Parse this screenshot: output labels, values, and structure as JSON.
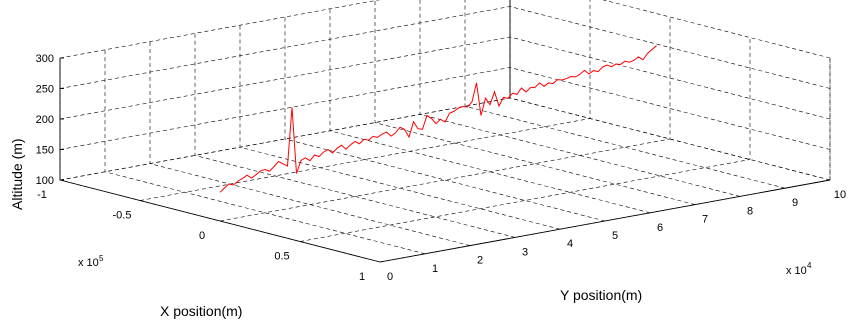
{
  "chart_data": {
    "type": "line",
    "subtype": "3d-line",
    "xlabel": "X position(m)",
    "ylabel": "Y position(m)",
    "zlabel": "Altitude (m)",
    "x_multiplier": "x 10^5",
    "y_multiplier": "x 10^4",
    "x_ticks": [
      "-1",
      "-0.5",
      "0",
      "0.5",
      "1"
    ],
    "y_ticks": [
      "0",
      "1",
      "2",
      "3",
      "4",
      "5",
      "6",
      "7",
      "8",
      "9",
      "10"
    ],
    "z_ticks": [
      "100",
      "150",
      "200",
      "250",
      "300"
    ],
    "xlim": [
      -100000,
      100000
    ],
    "ylim": [
      0,
      100000
    ],
    "zlim": [
      100,
      300
    ],
    "grid": true,
    "line_color": "#ff0000",
    "series": [
      {
        "x": [
          0,
          0,
          0,
          0,
          0,
          0,
          0,
          0,
          0,
          0,
          0,
          0,
          0,
          0,
          0,
          0,
          0,
          0,
          0,
          0,
          0,
          0,
          0,
          0,
          0,
          0,
          0,
          0,
          0,
          0,
          0,
          0,
          0,
          0,
          0,
          0,
          0,
          0,
          0,
          0,
          0,
          0,
          0,
          0,
          0,
          0,
          0,
          0,
          0,
          0,
          0,
          0,
          0,
          0,
          0,
          0,
          0,
          0,
          0,
          0,
          0,
          0,
          0,
          0,
          0,
          0,
          0,
          0,
          0,
          0,
          0,
          0,
          0,
          0,
          0,
          0,
          0,
          0,
          0,
          0,
          0,
          0,
          0,
          0,
          0,
          0,
          0,
          0,
          0,
          0,
          0,
          0,
          0,
          0,
          0,
          0,
          0,
          0
        ],
        "y": [
          0,
          1000,
          2000,
          3000,
          4000,
          5000,
          6000,
          7000,
          8000,
          9000,
          10000,
          11000,
          12000,
          13000,
          14000,
          15000,
          16000,
          17000,
          18000,
          19000,
          20000,
          21000,
          22000,
          23000,
          24000,
          25000,
          26000,
          27000,
          28000,
          29000,
          30000,
          31000,
          32000,
          33000,
          34000,
          35000,
          36000,
          37000,
          38000,
          39000,
          40000,
          41000,
          42000,
          43000,
          44000,
          45000,
          46000,
          47000,
          48000,
          49000,
          50000,
          51000,
          52000,
          53000,
          54000,
          55000,
          56000,
          57000,
          58000,
          59000,
          60000,
          61000,
          62000,
          63000,
          64000,
          65000,
          66000,
          67000,
          68000,
          69000,
          70000,
          71000,
          72000,
          73000,
          74000,
          75000,
          76000,
          77000,
          78000,
          79000,
          80000,
          81000,
          82000,
          83000,
          84000,
          85000,
          86000,
          87000,
          88000,
          89000,
          90000,
          91000,
          92000,
          93000,
          94000,
          95000,
          96000,
          97000
        ],
        "z": [
          147,
          153,
          158,
          155,
          160,
          163,
          167,
          161,
          165,
          170,
          171,
          167,
          173,
          180,
          175,
          170,
          265,
          155,
          175,
          178,
          172,
          180,
          176,
          182,
          185,
          178,
          184,
          188,
          180,
          186,
          190,
          185,
          191,
          188,
          193,
          190,
          194,
          196,
          188,
          192,
          200,
          195,
          181,
          205,
          192,
          190,
          211,
          205,
          195,
          201,
          195,
          208,
          210,
          214,
          215,
          213,
          220,
          250,
          195,
          222,
          210,
          230,
          205,
          218,
          215,
          222,
          219,
          228,
          220,
          226,
          225,
          231,
          224,
          228,
          226,
          231,
          229,
          230,
          232,
          230,
          233,
          238,
          231,
          235,
          232,
          238,
          240,
          236,
          239,
          237,
          241,
          238,
          240,
          244,
          238,
          247,
          252,
          257
        ]
      }
    ]
  }
}
